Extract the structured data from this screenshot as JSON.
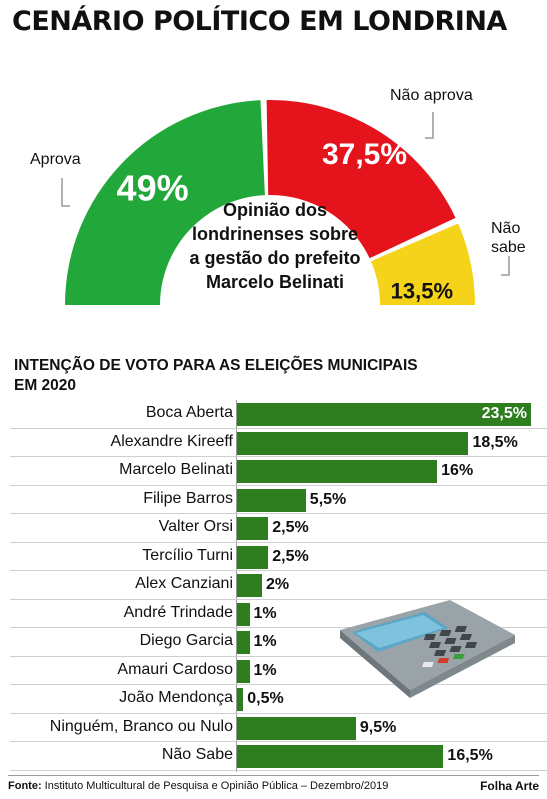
{
  "title": "CENÁRIO POLÍTICO EM LONDRINA",
  "chart_data": [
    {
      "type": "pie",
      "subtitle": "Opinião dos londrinenses sobre a gestão do prefeito Marcelo Belinati",
      "subtitle_lines": [
        "Opinião dos",
        "londrinenses sobre",
        "a gestão do prefeito",
        "Marcelo Belinati"
      ],
      "slices": [
        {
          "name": "Aprova",
          "value": 49,
          "label": "49%",
          "color": "#22a83a"
        },
        {
          "name": "Não aprova",
          "value": 37.5,
          "label": "37,5%",
          "color": "#e5131b"
        },
        {
          "name": "Não sabe",
          "value": 13.5,
          "label": "13,5%",
          "color": "#f5d31b"
        }
      ],
      "callouts": {
        "aprova": "Aprova",
        "nao_aprova": "Não aprova",
        "nao_sabe_lines": [
          "Não",
          "sabe"
        ]
      }
    },
    {
      "type": "bar",
      "title": "INTENÇÃO DE VOTO PARA AS ELEIÇÕES MUNICIPAIS EM 2020",
      "title_lines": [
        "INTENÇÃO DE VOTO PARA AS ELEIÇÕES MUNICIPAIS",
        "EM 2020"
      ],
      "color": "#2e7d1e",
      "categories": [
        "Boca Aberta",
        "Alexandre Kireeff",
        "Marcelo Belinati",
        "Filipe Barros",
        "Valter Orsi",
        "Tercílio Turni",
        "Alex Canziani",
        "André Trindade",
        "Diego Garcia",
        "Amauri Cardoso",
        "João Mendonça",
        "Ninguém, Branco ou Nulo",
        "Não Sabe"
      ],
      "values": [
        23.5,
        18.5,
        16,
        5.5,
        2.5,
        2.5,
        2,
        1,
        1,
        1,
        0.5,
        9.5,
        16.5
      ],
      "value_labels": [
        "23,5%",
        "18,5%",
        "16%",
        "5,5%",
        "2,5%",
        "2,5%",
        "2%",
        "1%",
        "1%",
        "1%",
        "0,5%",
        "9,5%",
        "16,5%"
      ],
      "xlim": [
        0,
        23.5
      ]
    }
  ],
  "footer": {
    "source_label": "Fonte:",
    "source_text": "Instituto Multicultural de Pesquisa e Opinião Pública – Dezembro/2019",
    "credit": "Folha Arte"
  },
  "icons": [
    "ballot-box-icon"
  ]
}
